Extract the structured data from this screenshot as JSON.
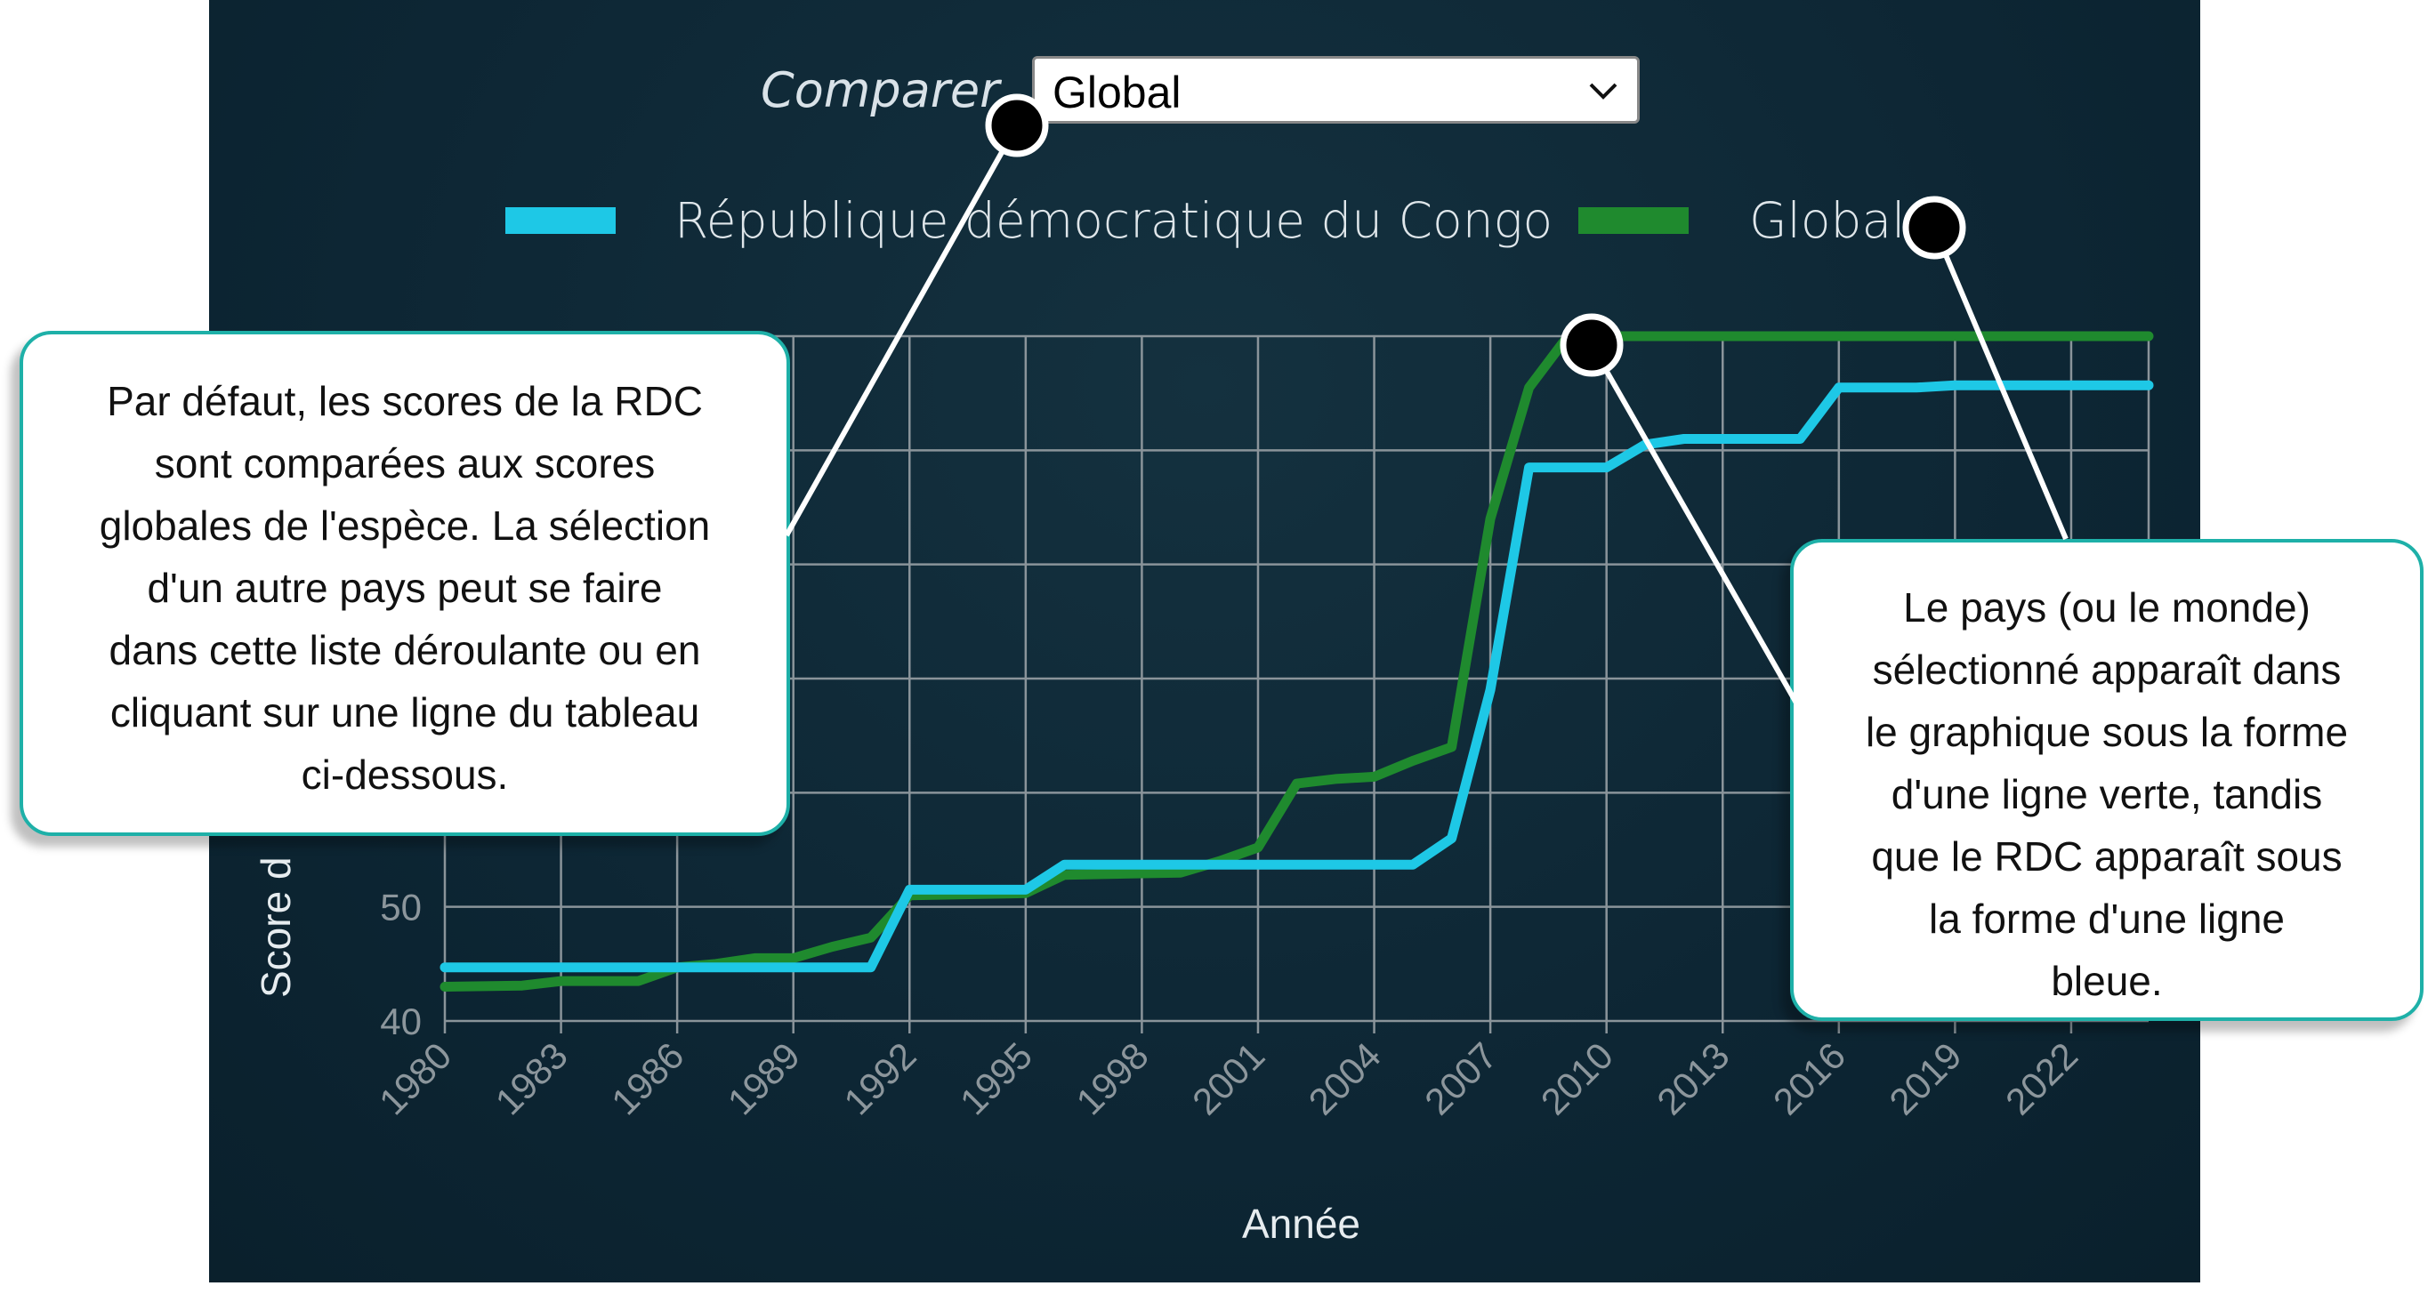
{
  "controls": {
    "compare_label": "Comparer",
    "compare_value": "Global"
  },
  "legend": [
    {
      "label": "République démocratique du Congo",
      "color": "#1ec8e6"
    },
    {
      "label": "Global",
      "color": "#1f8a2e"
    }
  ],
  "chart_data": {
    "type": "line",
    "xlabel": "Année",
    "ylabel": "Score d",
    "x_ticks": [
      "1980",
      "1983",
      "1986",
      "1989",
      "1992",
      "1995",
      "1998",
      "2001",
      "2004",
      "2007",
      "2010",
      "2013",
      "2016",
      "2019",
      "2022"
    ],
    "y_ticks": [
      "40",
      "50"
    ],
    "xlim": [
      1980,
      2024
    ],
    "ylim": [
      40,
      100
    ],
    "grid": true,
    "legend_position": "top",
    "series": [
      {
        "name": "République démocratique du Congo",
        "color": "#1ec8e6",
        "points": [
          [
            1980,
            44.7
          ],
          [
            1991,
            44.7
          ],
          [
            1992,
            51.5
          ],
          [
            1995,
            51.5
          ],
          [
            1996,
            53.7
          ],
          [
            2005,
            53.7
          ],
          [
            2006,
            56
          ],
          [
            2007,
            69
          ],
          [
            2008,
            88.5
          ],
          [
            2010,
            88.5
          ],
          [
            2011,
            90.5
          ],
          [
            2012,
            91
          ],
          [
            2015,
            91
          ],
          [
            2016,
            95.5
          ],
          [
            2018,
            95.5
          ],
          [
            2019,
            95.7
          ],
          [
            2024,
            95.7
          ]
        ]
      },
      {
        "name": "Global",
        "color": "#1f8a2e",
        "points": [
          [
            1980,
            43
          ],
          [
            1982,
            43.1
          ],
          [
            1983,
            43.5
          ],
          [
            1985,
            43.5
          ],
          [
            1986,
            44.7
          ],
          [
            1987,
            45
          ],
          [
            1988,
            45.5
          ],
          [
            1989,
            45.5
          ],
          [
            1990,
            46.5
          ],
          [
            1991,
            47.3
          ],
          [
            1992,
            51
          ],
          [
            1995,
            51.2
          ],
          [
            1996,
            52.8
          ],
          [
            1999,
            53
          ],
          [
            2000,
            54
          ],
          [
            2001,
            55.2
          ],
          [
            2002,
            60.8
          ],
          [
            2003,
            61.2
          ],
          [
            2004,
            61.4
          ],
          [
            2005,
            62.8
          ],
          [
            2006,
            64
          ],
          [
            2007,
            84
          ],
          [
            2008,
            95.5
          ],
          [
            2009,
            100
          ],
          [
            2024,
            100
          ]
        ]
      }
    ]
  },
  "callouts": {
    "left": "Par défaut, les scores de la RDC\nsont comparées aux scores\nglobales de l'espèce. La sélection\nd'un autre pays peut se faire\ndans cette liste déroulante ou en\ncliquant sur une ligne du tableau\nci-dessous.",
    "right": "Le pays (ou le monde)\nsélectionné apparaît dans\nle graphique sous la forme\nd'une ligne verte, tandis\nque le RDC apparaît sous\nla forme d'une ligne\nbleue."
  }
}
